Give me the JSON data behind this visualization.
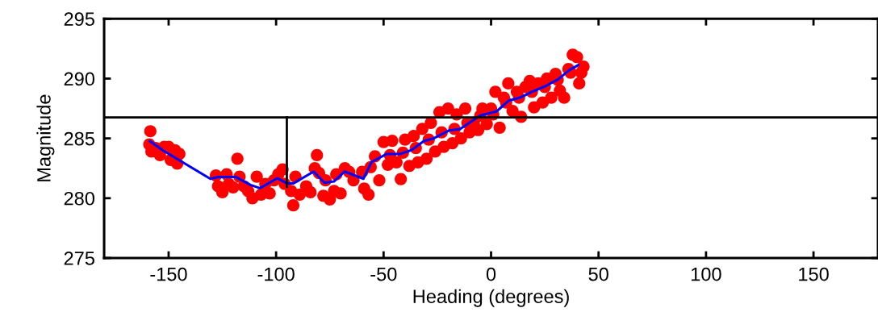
{
  "chart_data": {
    "type": "scatter",
    "xlabel": "Heading (degrees)",
    "ylabel": "Magnitude",
    "xlim": [
      -180,
      180
    ],
    "xticks": [
      -150,
      -100,
      -50,
      0,
      50,
      100,
      150
    ],
    "ylim": [
      275,
      295
    ],
    "yticks": [
      275,
      280,
      285,
      290,
      295
    ],
    "grid": false,
    "legend": false,
    "ref_lines": [
      {
        "axis": "y",
        "value": 286.75,
        "color": "#000000"
      }
    ],
    "series": [
      {
        "color": "#ff0000",
        "marker": "circle",
        "x": [
          -158.5,
          -159,
          -158,
          -156,
          -154,
          -152,
          -150,
          -149,
          -147,
          -146,
          -145,
          -128,
          -127,
          -125,
          -123,
          -122,
          -120,
          -118,
          -117,
          -115,
          -113,
          -111,
          -109,
          -107,
          -105,
          -103,
          -101,
          -99,
          -97,
          -96,
          -93,
          -92,
          -91,
          -89,
          -86,
          -84,
          -82,
          -81,
          -80,
          -78,
          -77,
          -75,
          -73,
          -72,
          -70,
          -68,
          -66,
          -64,
          -60,
          -59,
          -57,
          -56,
          -54,
          -52,
          -50,
          -48,
          -46,
          -44,
          -42,
          -40,
          -38,
          -36,
          -34,
          -32,
          -30,
          -28,
          -26,
          -24,
          -22,
          -20,
          -18,
          -16,
          -14,
          -12,
          -10,
          -8,
          -6,
          -4,
          -2,
          0,
          2,
          4,
          6,
          8,
          10,
          12,
          14,
          16,
          18,
          20,
          22,
          24,
          26,
          28,
          30,
          32,
          34,
          36,
          38,
          40,
          41,
          42,
          43,
          -47,
          -41,
          -35,
          -29,
          -23,
          -17,
          -11,
          -5,
          1,
          7,
          13,
          19,
          25,
          31,
          37
        ],
        "values": [
          285.6,
          284.5,
          283.9,
          284.2,
          283.6,
          284.3,
          284.3,
          283.2,
          284.0,
          282.9,
          283.7,
          281.9,
          281.0,
          280.5,
          282.0,
          281.2,
          280.9,
          283.3,
          281.8,
          281.0,
          280.6,
          280.0,
          281.8,
          280.3,
          281.2,
          280.4,
          281.5,
          282.0,
          282.4,
          281.2,
          280.6,
          279.4,
          281.8,
          280.3,
          281.0,
          280.5,
          282.5,
          283.6,
          282.1,
          280.2,
          281.5,
          279.9,
          280.6,
          282.0,
          280.4,
          282.5,
          282.2,
          281.5,
          282.2,
          280.8,
          280.3,
          282.6,
          283.5,
          281.5,
          284.7,
          282.8,
          284.8,
          283.0,
          281.6,
          284.9,
          282.7,
          285.2,
          283.0,
          285.8,
          283.3,
          286.3,
          283.9,
          287.2,
          284.3,
          287.5,
          284.6,
          287.0,
          285.0,
          287.5,
          285.5,
          286.3,
          285.7,
          287.5,
          286.2,
          287.5,
          288.9,
          285.9,
          288.4,
          289.6,
          287.3,
          288.9,
          286.8,
          289.3,
          289.8,
          287.6,
          289.6,
          288.0,
          290.0,
          288.4,
          290.4,
          289.0,
          288.4,
          290.8,
          292.0,
          291.8,
          289.6,
          290.5,
          291.0,
          283.6,
          283.8,
          284.2,
          284.9,
          285.5,
          285.8,
          286.3,
          286.9,
          287.0,
          288.0,
          288.4,
          288.9,
          289.3,
          289.9,
          290.5
        ]
      },
      {
        "type": "line",
        "color": "#0000ff",
        "marker": "none",
        "line_style": "solid",
        "x": [
          -158.7,
          -152.5,
          -130.6,
          -126.9,
          -118.8,
          -111.9,
          -107.5,
          -99.4,
          -95.0,
          -91.9,
          -82.5,
          -77.5,
          -73.1,
          -68.1,
          -59.4,
          -55.6,
          -48.7,
          -42.5,
          -36.9,
          -31.3,
          -26.9,
          -19.4,
          -14.4,
          -5.0,
          2.5,
          8.1,
          13.7,
          19.4,
          25.0,
          31.2,
          36.2,
          40.6
        ],
        "values": [
          284.77,
          283.98,
          281.62,
          281.78,
          281.78,
          281.11,
          280.84,
          281.67,
          281.24,
          281.24,
          282.23,
          281.29,
          281.4,
          282.23,
          281.62,
          283.02,
          283.69,
          283.69,
          284.03,
          284.77,
          284.99,
          285.67,
          285.78,
          286.91,
          287.25,
          288.14,
          288.43,
          288.93,
          289.34,
          289.94,
          290.68,
          291.13
        ]
      },
      {
        "type": "line",
        "color": "#000000",
        "marker": "none",
        "line_style": "solid",
        "x": [
          -95.0,
          -95.0
        ],
        "values": [
          286.75,
          280.95
        ]
      }
    ]
  }
}
